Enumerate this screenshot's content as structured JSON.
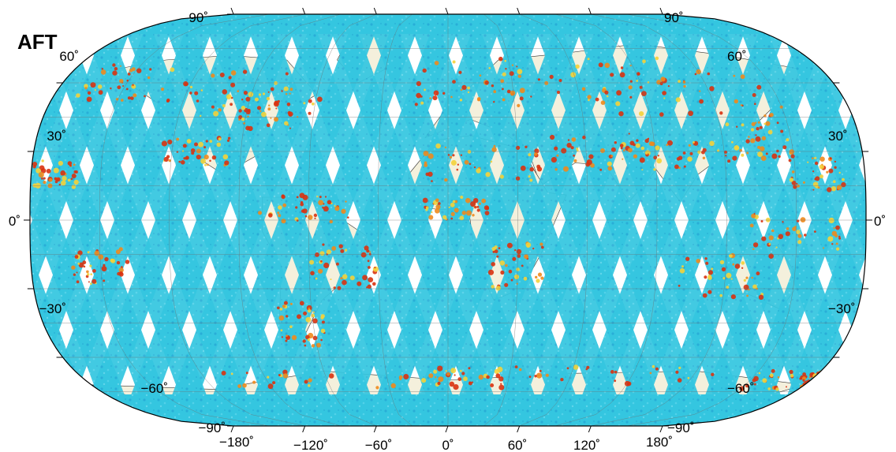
{
  "title": "AFT",
  "lat_labels_left": [
    "90˚",
    "60˚",
    "30˚",
    "0˚",
    "−30˚",
    "−60˚",
    "−90˚"
  ],
  "lat_labels_right": [
    "90˚",
    "60˚",
    "30˚",
    "0˚",
    "−30˚",
    "−60˚",
    "−90˚"
  ],
  "lon_labels": [
    "−180˚",
    "−120˚",
    "−60˚",
    "0˚",
    "60˚",
    "120˚",
    "180˚"
  ],
  "lat_values": [
    90,
    60,
    30,
    0,
    -30,
    -60,
    -90
  ],
  "lon_values": [
    -180,
    -120,
    -60,
    0,
    60,
    120,
    180
  ],
  "colors": {
    "swath": "#34c6e0",
    "swath_dark": "#1f9fd0",
    "land": "#f4f0dc",
    "hot_red": "#d9320f",
    "hot_orange": "#f08a1c",
    "hot_yellow": "#f4d23a",
    "grid": "#6e6e6e",
    "frame": "#000000"
  }
}
